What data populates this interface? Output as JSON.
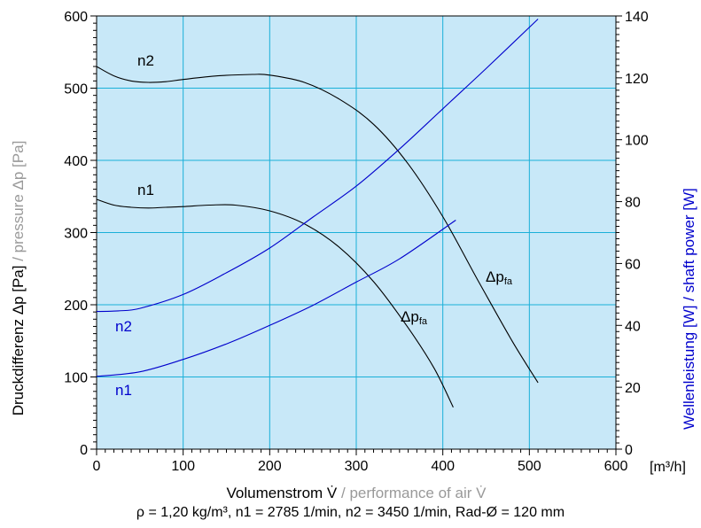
{
  "colors": {
    "plot_bg": "#c8e8f8",
    "grid": "#1ab0d8",
    "pressure_curve": "#000000",
    "power_curve": "#0000cc",
    "gray_text": "#999999",
    "axis": "#000000"
  },
  "chart_data": {
    "type": "line",
    "x_axis": {
      "label_de": "Volumenstrom V̇",
      "label_sep": " / ",
      "label_en": "performance of air V̇",
      "unit": "[m³/h]",
      "range": [
        0,
        600
      ],
      "ticks": [
        0,
        100,
        200,
        300,
        400,
        500,
        600
      ],
      "tick_labels": [
        "0",
        "100",
        "200",
        "300",
        "400",
        "500",
        "600"
      ]
    },
    "y_axis_left": {
      "label_de": "Druckdifferenz Δp [Pa]",
      "label_sep": " / ",
      "label_en": "pressure Δp [Pa]",
      "range": [
        0,
        600
      ],
      "ticks": [
        0,
        100,
        200,
        300,
        400,
        500,
        600
      ],
      "tick_labels": [
        "0",
        "100",
        "200",
        "300",
        "400",
        "500",
        "600"
      ]
    },
    "y_axis_right": {
      "label_de": "Wellenleistung [W]",
      "label_sep": " / ",
      "label_en": "shaft power [W]",
      "range": [
        0,
        140
      ],
      "ticks": [
        0,
        20,
        40,
        60,
        80,
        100,
        120,
        140
      ],
      "tick_labels": [
        "0",
        "20",
        "40",
        "60",
        "80",
        "100",
        "120",
        "140"
      ]
    },
    "grid": true,
    "series": [
      {
        "name": "n2",
        "kind": "pressure",
        "axis": "left",
        "curve_label": "Δp",
        "curve_label_sub": "fa",
        "x": [
          0,
          20,
          40,
          60,
          80,
          100,
          140,
          180,
          200,
          240,
          280,
          320,
          360,
          400,
          440,
          480,
          510
        ],
        "y": [
          530,
          517,
          510,
          508,
          509,
          512,
          517,
          519,
          518,
          508,
          485,
          450,
          395,
          322,
          235,
          150,
          92
        ]
      },
      {
        "name": "n1",
        "kind": "pressure",
        "axis": "left",
        "curve_label": "Δp",
        "curve_label_sub": "fa",
        "x": [
          0,
          20,
          40,
          60,
          80,
          100,
          130,
          160,
          200,
          240,
          280,
          320,
          360,
          390,
          412
        ],
        "y": [
          346,
          338,
          335,
          334,
          335,
          336,
          338,
          338,
          330,
          312,
          280,
          232,
          168,
          112,
          58
        ]
      },
      {
        "name": "n2",
        "kind": "power",
        "axis": "right",
        "x": [
          0,
          25,
          50,
          100,
          150,
          200,
          250,
          300,
          350,
          400,
          450,
          510
        ],
        "y": [
          44.5,
          44.7,
          45.5,
          50,
          57,
          65,
          75,
          85,
          97,
          110,
          123,
          139
        ]
      },
      {
        "name": "n1",
        "kind": "power",
        "axis": "right",
        "x": [
          0,
          50,
          100,
          150,
          200,
          250,
          300,
          350,
          415
        ],
        "y": [
          23.5,
          25,
          29,
          34,
          40,
          46.5,
          54,
          61.5,
          74
        ]
      }
    ],
    "footnote": "ρ = 1,20 kg/m³, n1 = 2785 1/min, n2 = 3450 1/min, Rad-Ø = 120 mm"
  }
}
